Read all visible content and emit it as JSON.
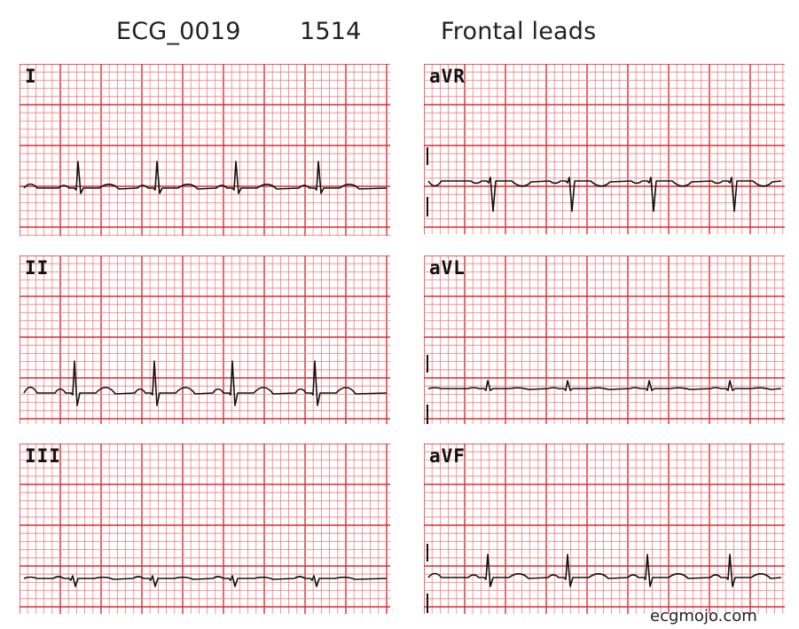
{
  "header": {
    "id": "ECG_0019",
    "number": "1514",
    "title": "Frontal leads"
  },
  "leads": [
    {
      "key": "I",
      "label": "I"
    },
    {
      "key": "II",
      "label": "II"
    },
    {
      "key": "III",
      "label": "III"
    },
    {
      "key": "aVR",
      "label": "aVR"
    },
    {
      "key": "aVL",
      "label": "aVL"
    },
    {
      "key": "aVF",
      "label": "aVF"
    }
  ],
  "colors": {
    "grid_major": "#e0282e",
    "grid_minor": "#ef7f83",
    "trace": "#111111"
  },
  "credit": "ecgmojo.com"
}
